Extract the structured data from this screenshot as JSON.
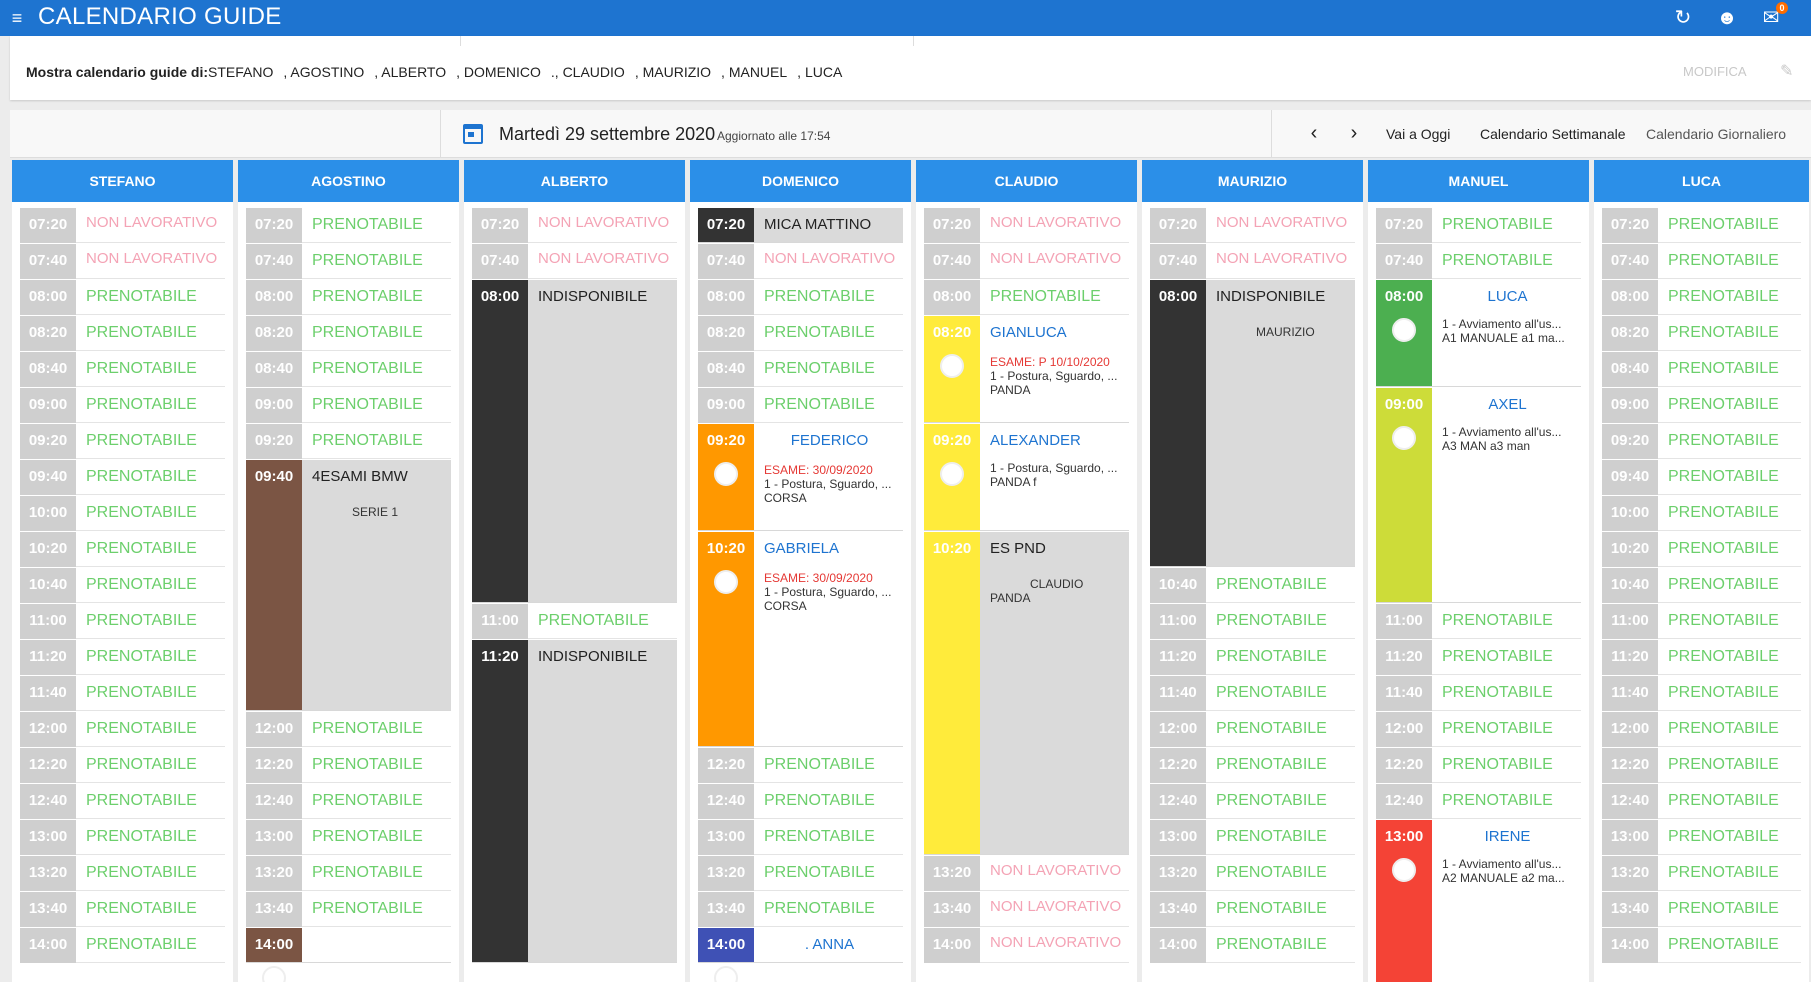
{
  "appbar": {
    "title": "CALENDARIO GUIDE",
    "menu_icon": "hamburger-icon",
    "icons": [
      "refresh-icon",
      "user-icon",
      "chat-icon"
    ],
    "chat_badge": "0"
  },
  "filter": {
    "label": "Mostra calendario guide di:",
    "instructors": [
      "STEFANO",
      ", AGOSTINO",
      ", ALBERTO",
      ", DOMENICO",
      "., CLAUDIO",
      ", MAURIZIO",
      ", MANUEL",
      ", LUCA"
    ],
    "modifica_label": "MODIFICA"
  },
  "toolbar": {
    "date": "Martedì 29 settembre 2020",
    "updated": "Aggiornato alle 17:54",
    "today_label": "Vai a Oggi",
    "weekly_label": "Calendario Settimanale",
    "daily_label": "Calendario Giornaliero"
  },
  "colors": {
    "header": "#2b8fe8",
    "prenotabile": "#6ccf6c",
    "non_lavorativo": "#f4a3b5",
    "dark": "#333333",
    "brown": "#7b5544",
    "orange": "#ff9800",
    "yellow": "#ffeb3b",
    "green": "#4caf50",
    "lime": "#cddc39",
    "red": "#f44336",
    "indigo": "#3f51b5"
  },
  "labels": {
    "prenotabile": "PRENOTABILE",
    "non_lavorativo": "NON LAVORATIVO"
  },
  "columns": [
    {
      "name": "STEFANO",
      "slots": [
        {
          "time": "07:20",
          "status": "nonlav"
        },
        {
          "time": "07:40",
          "status": "nonlav"
        },
        {
          "time": "08:00"
        },
        {
          "time": "08:20"
        },
        {
          "time": "08:40"
        },
        {
          "time": "09:00"
        },
        {
          "time": "09:20"
        },
        {
          "time": "09:40"
        },
        {
          "time": "10:00"
        },
        {
          "time": "10:20"
        },
        {
          "time": "10:40"
        },
        {
          "time": "11:00"
        },
        {
          "time": "11:20"
        },
        {
          "time": "11:40"
        },
        {
          "time": "12:00"
        },
        {
          "time": "12:20"
        },
        {
          "time": "12:40"
        },
        {
          "time": "13:00"
        },
        {
          "time": "13:20"
        },
        {
          "time": "13:40"
        },
        {
          "time": "14:00"
        }
      ],
      "appts": []
    },
    {
      "name": "AGOSTINO",
      "slots": [
        {
          "time": "07:20"
        },
        {
          "time": "07:40"
        },
        {
          "time": "08:00"
        },
        {
          "time": "08:20"
        },
        {
          "time": "08:40"
        },
        {
          "time": "09:00"
        },
        {
          "time": "09:20"
        },
        {
          "time": "12:00"
        },
        {
          "time": "12:20"
        },
        {
          "time": "12:40"
        },
        {
          "time": "13:00"
        },
        {
          "time": "13:20"
        },
        {
          "time": "13:40"
        }
      ],
      "appts": [
        {
          "time": "09:40",
          "slots": 7,
          "color": "brown",
          "gray": true,
          "title": "4ESAMI BMW",
          "sub": "SERIE 1"
        },
        {
          "time": "14:00",
          "slots": 1,
          "color": "brown",
          "avatar": true,
          "title": ""
        }
      ]
    },
    {
      "name": "ALBERTO",
      "slots": [
        {
          "time": "07:20",
          "status": "nonlav"
        },
        {
          "time": "07:40",
          "status": "nonlav"
        },
        {
          "time": "11:00"
        }
      ],
      "appts": [
        {
          "time": "08:00",
          "slots": 9,
          "color": "dark",
          "gray": true,
          "title": "INDISPONIBILE"
        },
        {
          "time": "11:20",
          "slots": 9,
          "color": "dark",
          "gray": true,
          "title": "INDISPONIBILE"
        }
      ]
    },
    {
      "name": "DOMENICO",
      "slots": [
        {
          "time": "07:40",
          "status": "nonlav"
        },
        {
          "time": "08:00"
        },
        {
          "time": "08:20"
        },
        {
          "time": "08:40"
        },
        {
          "time": "09:00"
        },
        {
          "time": "12:20"
        },
        {
          "time": "12:40"
        },
        {
          "time": "13:00"
        },
        {
          "time": "13:20"
        },
        {
          "time": "13:40"
        }
      ],
      "appts": [
        {
          "time": "07:20",
          "slots": 1,
          "color": "dark",
          "gray": true,
          "title": "MICA      MATTINO"
        },
        {
          "time": "09:20",
          "slots": 3,
          "color": "orange",
          "avatar": true,
          "title": "FEDERICO",
          "blue": true,
          "exam": "ESAME: 30/09/2020",
          "line1": "1 - Postura, Sguardo, ...",
          "line2": "CORSA"
        },
        {
          "time": "10:20",
          "slots": 6,
          "color": "orange",
          "avatar": true,
          "title": "GABRIELA",
          "bluel": true,
          "exam": "ESAME: 30/09/2020",
          "line1": "1 - Postura, Sguardo, ...",
          "line2": "CORSA"
        },
        {
          "time": "14:00",
          "slots": 1,
          "color": "indigo",
          "avatar": true,
          "title": ". ANNA",
          "blue": true
        }
      ]
    },
    {
      "name": "CLAUDIO",
      "slots": [
        {
          "time": "07:20",
          "status": "nonlav"
        },
        {
          "time": "07:40",
          "status": "nonlav"
        },
        {
          "time": "08:00"
        },
        {
          "time": "13:20",
          "status": "nonlav"
        },
        {
          "time": "13:40",
          "status": "nonlav"
        },
        {
          "time": "14:00",
          "status": "nonlav"
        }
      ],
      "appts": [
        {
          "time": "08:20",
          "slots": 3,
          "color": "yellow",
          "avatar": true,
          "title": "GIANLUCA",
          "bluel": true,
          "exam": "ESAME: P 10/10/2020",
          "line1": "1 - Postura, Sguardo, ...",
          "line2": "PANDA"
        },
        {
          "time": "09:20",
          "slots": 3,
          "color": "yellow",
          "avatar": true,
          "title": "ALEXANDER",
          "bluel": true,
          "line1": "1 - Postura, Sguardo, ...",
          "line2": "PANDA f"
        },
        {
          "time": "10:20",
          "slots": 9,
          "color": "yellow",
          "gray": true,
          "title": "ES PND",
          "sub": "CLAUDIO",
          "line2": "PANDA"
        }
      ]
    },
    {
      "name": "MAURIZIO",
      "slots": [
        {
          "time": "07:20",
          "status": "nonlav"
        },
        {
          "time": "07:40",
          "status": "nonlav"
        },
        {
          "time": "10:40"
        },
        {
          "time": "11:00"
        },
        {
          "time": "11:20"
        },
        {
          "time": "11:40"
        },
        {
          "time": "12:00"
        },
        {
          "time": "12:20"
        },
        {
          "time": "12:40"
        },
        {
          "time": "13:00"
        },
        {
          "time": "13:20"
        },
        {
          "time": "13:40"
        },
        {
          "time": "14:00"
        }
      ],
      "appts": [
        {
          "time": "08:00",
          "slots": 8,
          "color": "dark",
          "gray": true,
          "title": "INDISPONIBILE",
          "sub": "MAURIZIO"
        }
      ]
    },
    {
      "name": "MANUEL",
      "slots": [
        {
          "time": "07:20"
        },
        {
          "time": "07:40"
        },
        {
          "time": "11:00"
        },
        {
          "time": "11:20"
        },
        {
          "time": "11:40"
        },
        {
          "time": "12:00"
        },
        {
          "time": "12:20"
        },
        {
          "time": "12:40"
        }
      ],
      "appts": [
        {
          "time": "08:00",
          "slots": 3,
          "color": "green",
          "avatar": true,
          "title": "LUCA",
          "blue": true,
          "line1": "1 - Avviamento all'us...",
          "line2": "A1 MANUALE a1 ma..."
        },
        {
          "time": "09:00",
          "slots": 6,
          "color": "lime",
          "avatar": true,
          "title": "AXEL",
          "blue": true,
          "line1": "1 - Avviamento all'us...",
          "line2": "A3 MAN a3 man"
        },
        {
          "time": "13:00",
          "slots": 5,
          "color": "red",
          "avatar": true,
          "title": "IRENE",
          "blue": true,
          "line1": "1 - Avviamento all'us...",
          "line2": "A2 MANUALE a2 ma..."
        }
      ]
    },
    {
      "name": "LUCA",
      "slots": [
        {
          "time": "07:20"
        },
        {
          "time": "07:40"
        },
        {
          "time": "08:00"
        },
        {
          "time": "08:20"
        },
        {
          "time": "08:40"
        },
        {
          "time": "09:00"
        },
        {
          "time": "09:20"
        },
        {
          "time": "09:40"
        },
        {
          "time": "10:00"
        },
        {
          "time": "10:20"
        },
        {
          "time": "10:40"
        },
        {
          "time": "11:00"
        },
        {
          "time": "11:20"
        },
        {
          "time": "11:40"
        },
        {
          "time": "12:00"
        },
        {
          "time": "12:20"
        },
        {
          "time": "12:40"
        },
        {
          "time": "13:00"
        },
        {
          "time": "13:20"
        },
        {
          "time": "13:40"
        },
        {
          "time": "14:00"
        }
      ],
      "appts": []
    }
  ]
}
